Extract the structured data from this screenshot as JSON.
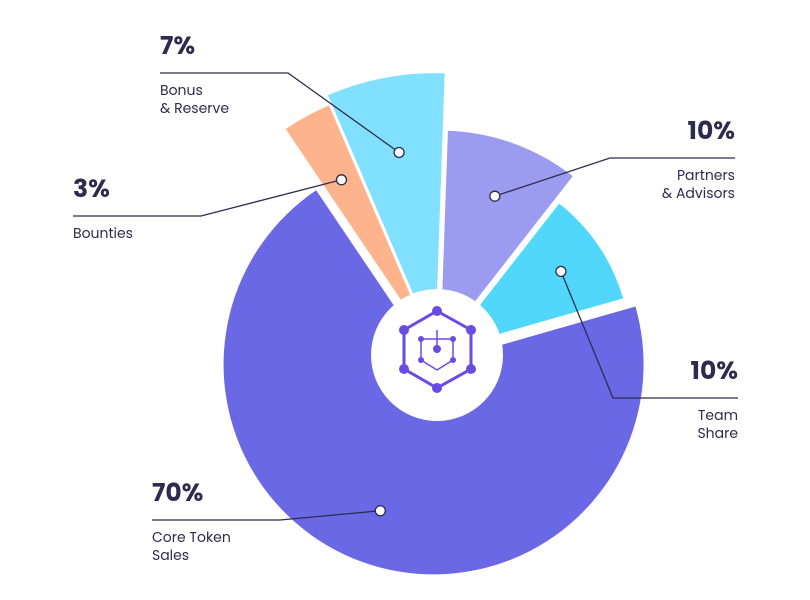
{
  "chart_data": {
    "type": "pie",
    "categories": [
      [
        "Partners",
        "& Advisors"
      ],
      [
        "Team",
        "Share"
      ],
      [
        "Core Token",
        "Sales"
      ],
      [
        "Bounties"
      ],
      [
        "Bonus",
        "& Reserve"
      ]
    ],
    "values": [
      10,
      10,
      70,
      3,
      7
    ],
    "value_labels": [
      "10%",
      "10%",
      "70%",
      "3%",
      "7%"
    ],
    "colors": [
      "#9b9cf0",
      "#50d7fb",
      "#6b68e6",
      "#fdb38c",
      "#80e0fd"
    ]
  }
}
